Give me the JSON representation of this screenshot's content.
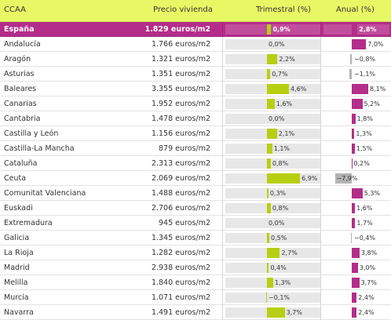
{
  "header": {
    "ccaa": "CCAA",
    "price": "Precio vivienda",
    "quarterly": "Trimestral (%)",
    "annual": "Anual (%)"
  },
  "colors": {
    "header_bg": "#e8f865",
    "highlight_row": "#b52d8a",
    "quarterly_bar": "#b7cf12",
    "annual_bar": "#b52d8a",
    "negative_bar": "#b3b3b3",
    "track": "#e7e7e7"
  },
  "chart_data": {
    "type": "table",
    "columns": [
      "CCAA",
      "Precio vivienda",
      "Trimestral (%)",
      "Anual (%)"
    ],
    "rows": [
      {
        "name": "España",
        "price": "1.829 euros/m2",
        "q": 0.9,
        "q_label": "0,9%",
        "a": 2.8,
        "a_label": "2,8%",
        "highlight": true
      },
      {
        "name": "Andalucía",
        "price": "1.766 euros/m2",
        "q": 0.0,
        "q_label": "0,0%",
        "a": 7.0,
        "a_label": "7,0%"
      },
      {
        "name": "Aragón",
        "price": "1.321 euros/m2",
        "q": 2.2,
        "q_label": "2,2%",
        "a": -0.8,
        "a_label": "−0,8%"
      },
      {
        "name": "Asturias",
        "price": "1.351 euros/m2",
        "q": 0.7,
        "q_label": "0,7%",
        "a": -1.1,
        "a_label": "−1,1%"
      },
      {
        "name": "Baleares",
        "price": "3.355 euros/m2",
        "q": 4.6,
        "q_label": "4,6%",
        "a": 8.1,
        "a_label": "8,1%"
      },
      {
        "name": "Canarias",
        "price": "1.952 euros/m2",
        "q": 1.6,
        "q_label": "1,6%",
        "a": 5.2,
        "a_label": "5,2%"
      },
      {
        "name": "Cantabria",
        "price": "1.478 euros/m2",
        "q": 0.0,
        "q_label": "0,0%",
        "a": 1.8,
        "a_label": "1,8%"
      },
      {
        "name": "Castilla y León",
        "price": "1.156 euros/m2",
        "q": 2.1,
        "q_label": "2,1%",
        "a": 1.3,
        "a_label": "1,3%"
      },
      {
        "name": "Castilla-La Mancha",
        "price": "879 euros/m2",
        "q": 1.1,
        "q_label": "1,1%",
        "a": 1.5,
        "a_label": "1,5%"
      },
      {
        "name": "Cataluña",
        "price": "2.313 euros/m2",
        "q": 0.8,
        "q_label": "0,8%",
        "a": 0.2,
        "a_label": "0,2%"
      },
      {
        "name": "Ceuta",
        "price": "2.069 euros/m2",
        "q": 6.9,
        "q_label": "6,9%",
        "a": -7.9,
        "a_label": "−7,9%"
      },
      {
        "name": "Comunitat Valenciana",
        "price": "1.488 euros/m2",
        "q": 0.3,
        "q_label": "0,3%",
        "a": 5.3,
        "a_label": "5,3%"
      },
      {
        "name": "Euskadi",
        "price": "2.706 euros/m2",
        "q": 0.8,
        "q_label": "0,8%",
        "a": 1.6,
        "a_label": "1,6%"
      },
      {
        "name": "Extremadura",
        "price": "945 euros/m2",
        "q": 0.0,
        "q_label": "0,0%",
        "a": 1.7,
        "a_label": "1,7%"
      },
      {
        "name": "Galicia",
        "price": "1.345 euros/m2",
        "q": 0.5,
        "q_label": "0,5%",
        "a": -0.4,
        "a_label": "−0,4%"
      },
      {
        "name": "La Rioja",
        "price": "1.282 euros/m2",
        "q": 2.7,
        "q_label": "2,7%",
        "a": 3.8,
        "a_label": "3,8%"
      },
      {
        "name": "Madrid",
        "price": "2.938 euros/m2",
        "q": 0.4,
        "q_label": "0,4%",
        "a": 3.0,
        "a_label": "3,0%"
      },
      {
        "name": "Melilla",
        "price": "1.840 euros/m2",
        "q": 1.3,
        "q_label": "1,3%",
        "a": 3.7,
        "a_label": "3,7%"
      },
      {
        "name": "Murcia",
        "price": "1.071 euros/m2",
        "q": -0.1,
        "q_label": "−0,1%",
        "a": 2.4,
        "a_label": "2,4%"
      },
      {
        "name": "Navarra",
        "price": "1.491 euros/m2",
        "q": 3.7,
        "q_label": "3,7%",
        "a": 2.4,
        "a_label": "2,4%"
      }
    ]
  }
}
